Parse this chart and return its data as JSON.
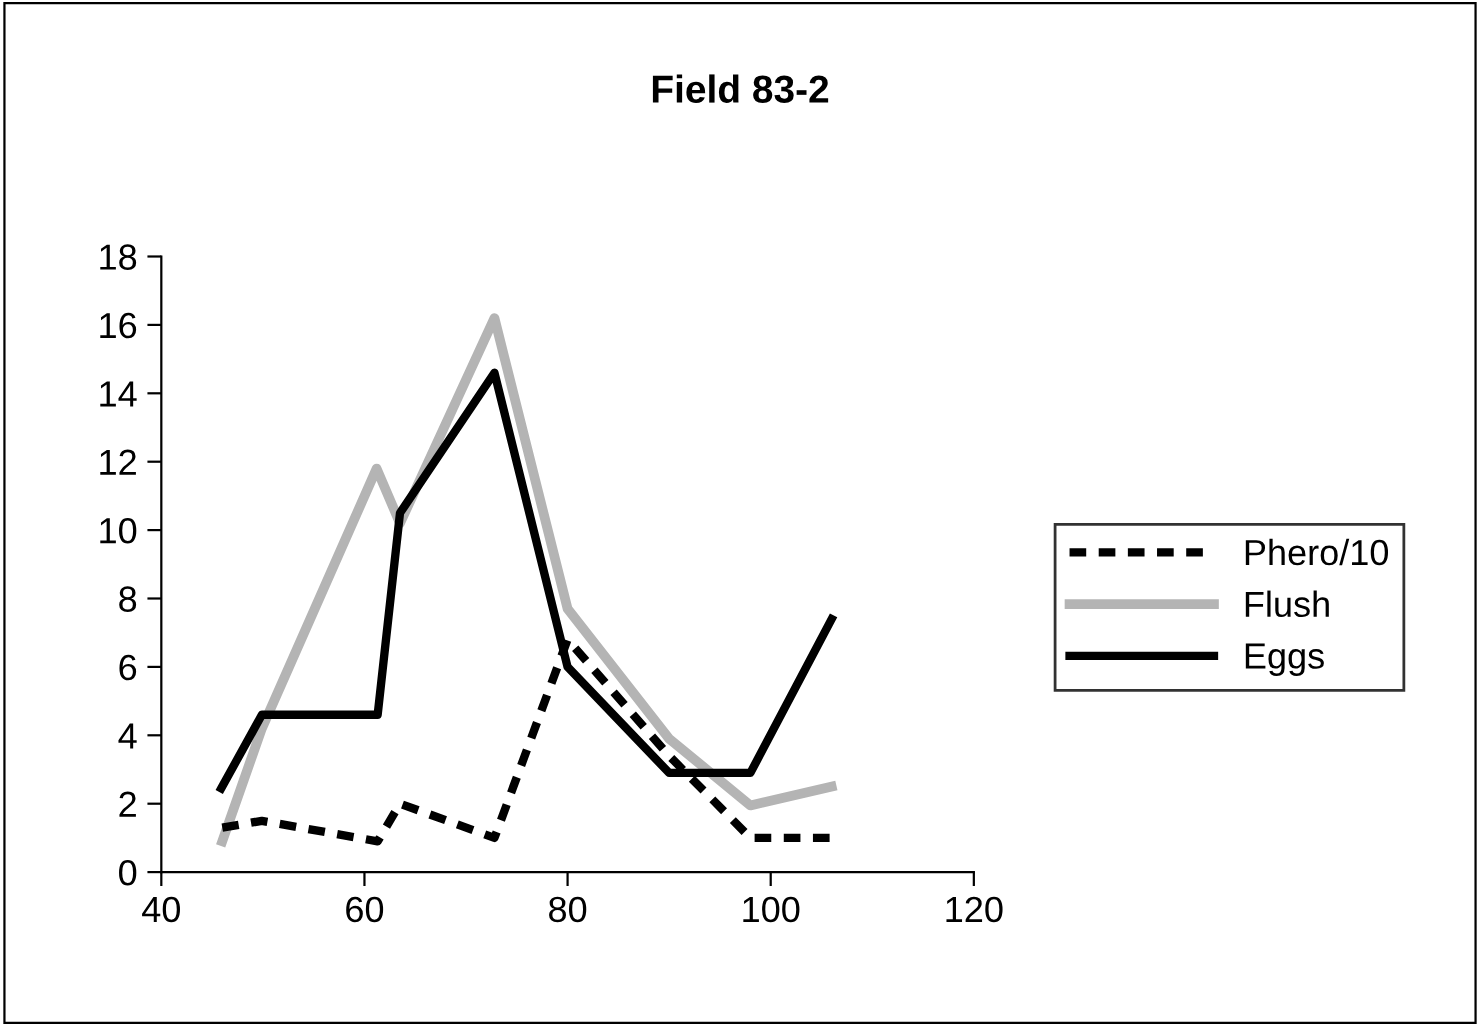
{
  "chart_data": {
    "type": "line",
    "title": "Field 83-2",
    "xlim": [
      40,
      120
    ],
    "xticks": [
      40,
      60,
      80,
      100,
      120
    ],
    "ylim": [
      0,
      18
    ],
    "yticks": [
      0,
      2,
      4,
      6,
      8,
      10,
      12,
      14,
      16,
      18
    ],
    "grid": false,
    "legend": "right",
    "marker": "none",
    "series": [
      {
        "name": "Phero/10",
        "color": "#000000",
        "line_style": "dashed",
        "x": [
          46,
          49.9,
          61.3,
          63.5,
          72.8,
          80,
          90,
          98,
          106
        ],
        "values": [
          1.3,
          1.5,
          0.9,
          2.0,
          1.0,
          6.8,
          3.4,
          1.0,
          1.0
        ]
      },
      {
        "name": "Flush",
        "color": "#b4b4b4",
        "line_style": "solid",
        "x": [
          46,
          49.9,
          61.2,
          63.5,
          72.8,
          80,
          90,
          98,
          106
        ],
        "values": [
          0.9,
          4.2,
          11.8,
          10.2,
          16.2,
          7.7,
          3.9,
          1.95,
          2.5
        ]
      },
      {
        "name": "Eggs",
        "color": "#000000",
        "line_style": "solid",
        "x": [
          45.9,
          49.9,
          61.3,
          63.5,
          72.8,
          80,
          90,
          98,
          106
        ],
        "values": [
          2.45,
          4.6,
          4.6,
          10.5,
          14.6,
          6.0,
          2.9,
          2.9,
          7.4
        ]
      }
    ]
  }
}
